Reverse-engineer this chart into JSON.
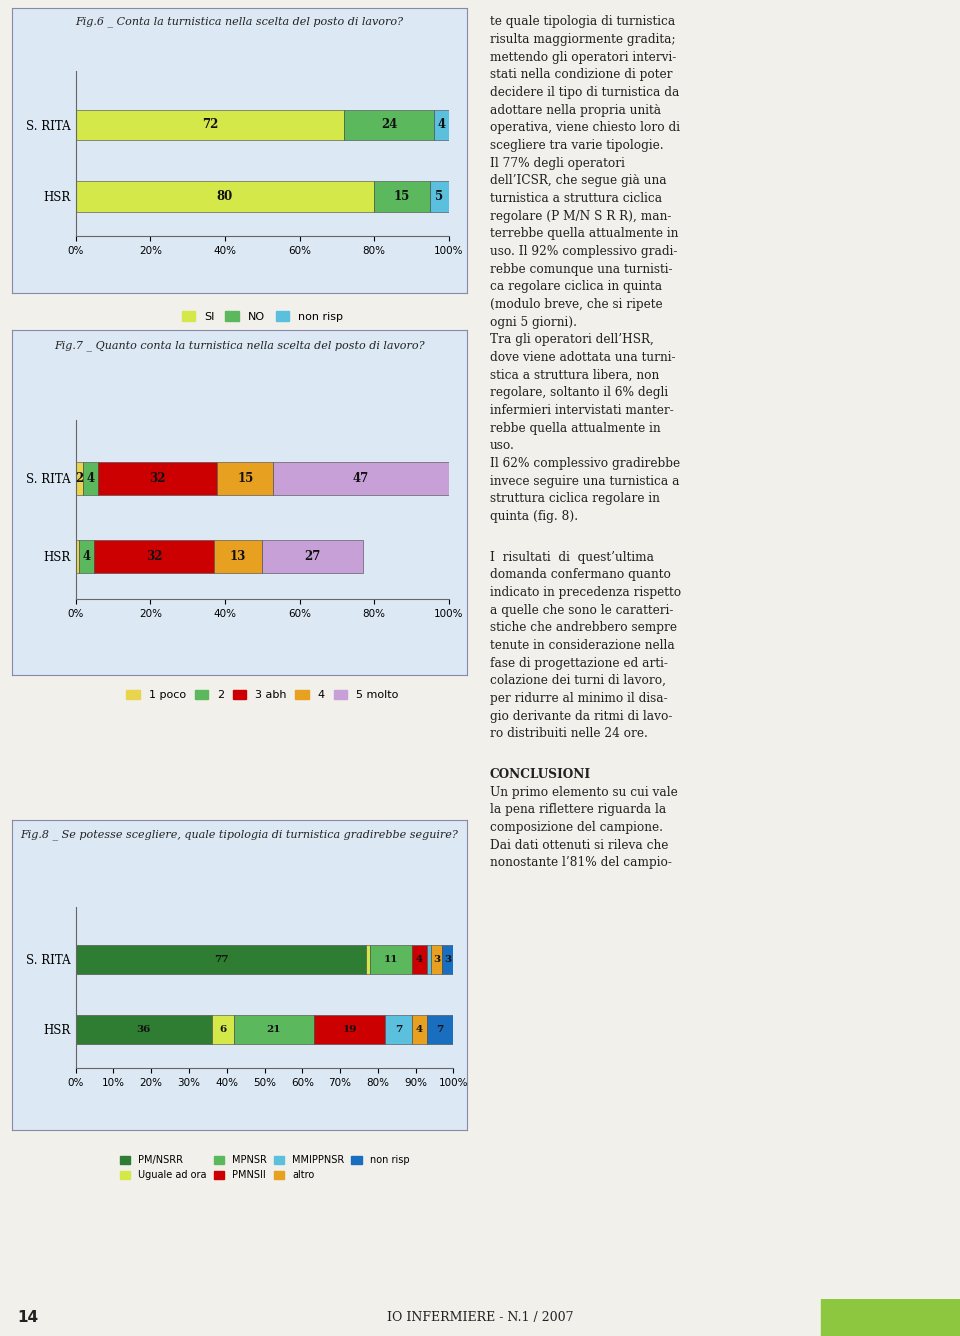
{
  "fig6": {
    "title": "Fig.6 _ Conta la turnistica nella scelta del posto di lavoro?",
    "categories": [
      "S. RITA",
      "HSR"
    ],
    "data": {
      "SI": [
        72,
        80
      ],
      "NO": [
        24,
        15
      ],
      "non risp": [
        4,
        5
      ]
    },
    "colors": {
      "SI": "#d4e84a",
      "NO": "#5cb85c",
      "non risp": "#5bc0de"
    },
    "xticks": [
      0,
      20,
      40,
      60,
      80,
      100
    ],
    "xticklabels": [
      "0%",
      "20%",
      "40%",
      "60%",
      "80%",
      "100%"
    ]
  },
  "fig7": {
    "title": "Fig.7 _ Quanto conta la turnistica nella scelta del posto di lavoro?",
    "categories": [
      "S. RITA",
      "HSR"
    ],
    "data": {
      "1 poco": [
        2,
        1
      ],
      "2": [
        4,
        4
      ],
      "3 abh": [
        32,
        32
      ],
      "4": [
        15,
        13
      ],
      "5 molto": [
        47,
        27
      ]
    },
    "colors": {
      "1 poco": "#e8d44d",
      "2": "#5cb85c",
      "3 abh": "#cc0000",
      "4": "#e8a020",
      "5 molto": "#c8a0d8"
    },
    "xticks": [
      0,
      20,
      40,
      60,
      80,
      100
    ],
    "xticklabels": [
      "0%",
      "20%",
      "40%",
      "60%",
      "80%",
      "100%"
    ]
  },
  "fig8": {
    "title": "Fig.8 _ Se potesse scegliere, quale tipologia di turnistica gradirebbe seguire?",
    "categories": [
      "S. RITA",
      "HSR"
    ],
    "data": {
      "PM/NSRR": [
        77,
        36
      ],
      "Uguale ad ora": [
        1,
        6
      ],
      "MPNSR": [
        11,
        21
      ],
      "PMNSII": [
        4,
        19
      ],
      "MMIPPNSR": [
        1,
        7
      ],
      "altro": [
        3,
        4
      ],
      "non risp": [
        3,
        7
      ]
    },
    "colors": {
      "PM/NSRR": "#2e7d32",
      "Uguale ad ora": "#d4e84a",
      "MPNSR": "#5cb85c",
      "PMNSII": "#cc0000",
      "MMIPPNSR": "#5bc0de",
      "altro": "#e8a020",
      "non risp": "#1a6ec0"
    },
    "xticks": [
      0,
      10,
      20,
      30,
      40,
      50,
      60,
      70,
      80,
      90,
      100
    ],
    "xticklabels": [
      "0%",
      "10%",
      "20%",
      "30%",
      "40%",
      "50%",
      "60%",
      "70%",
      "80%",
      "90%",
      "100%"
    ]
  },
  "right_text_top": [
    "te quale tipologia di turnistica",
    "risulta maggiormente gradita;",
    "mettendo gli operatori intervi-",
    "stati nella condizione di poter",
    "decidere il tipo di turnistica da",
    "adottare nella propria unità",
    "operativa, viene chiesto loro di",
    "scegliere tra varie tipologie.",
    "Il 77% degli operatori",
    "dell’ICSR, che segue già una",
    "turnistica a struttura ciclica",
    "regolare (P M/N S R R), man-",
    "terrebbe quella attualmente in",
    "uso. Il 92% complessivo gradi-",
    "rebbe comunque una turnisti-",
    "ca regolare ciclica in quinta",
    "(modulo breve, che si ripete",
    "ogni 5 giorni).",
    "Tra gli operatori dell’HSR,",
    "dove viene adottata una turni-",
    "stica a struttura libera, non",
    "regolare, soltanto il 6% degli",
    "infermieri intervistati manter-",
    "rebbe quella attualmente in",
    "uso.",
    "Il 62% complessivo gradirebbe",
    "invece seguire una turnistica a",
    "struttura ciclica regolare in",
    "quinta (fig. 8)."
  ],
  "right_text_middle": [
    "I  risultati  di  quest’ultima",
    "domanda confermano quanto",
    "indicato in precedenza rispetto",
    "a quelle che sono le caratteri-",
    "stiche che andrebbero sempre",
    "tenute in considerazione nella",
    "fase di progettazione ed arti-",
    "colazione dei turni di lavoro,",
    "per ridurre al minimo il disa-",
    "gio derivante da ritmi di lavo-",
    "ro distribuiti nelle 24 ore."
  ],
  "right_text_bottom": [
    "Un primo elemento su cui vale",
    "la pena riflettere riguarda la",
    "composizione del campione.",
    "Dai dati ottenuti si rileva che",
    "nonostante l’81% del campio-"
  ],
  "conclusioni": "CONCLUSIONI",
  "page_num": "14",
  "journal": "IO INFERMIERE - N.1 / 2007",
  "bg_color": "#f2f0eb",
  "panel_bg": "#dce8f4",
  "border_color": "#8888aa",
  "green_bar_color": "#8dc63f"
}
